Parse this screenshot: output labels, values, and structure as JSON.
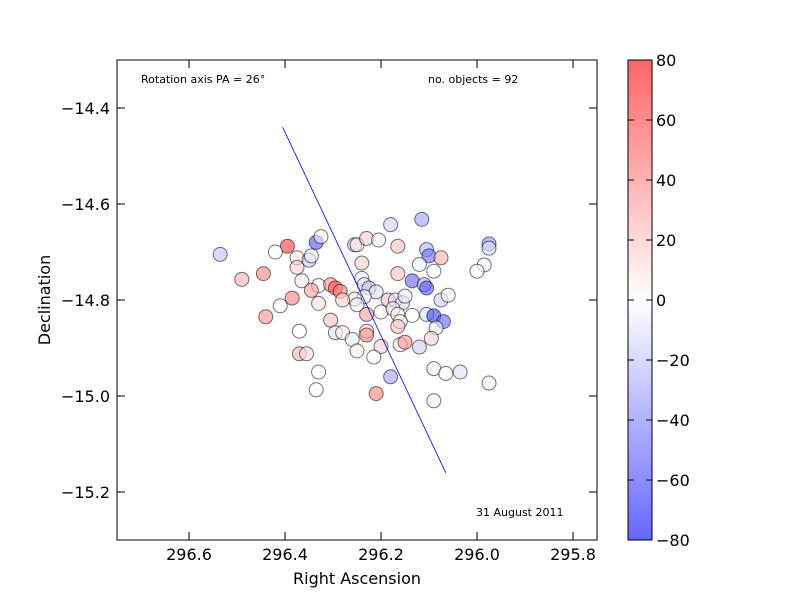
{
  "chart_data": {
    "type": "scatter",
    "xlabel": "Right Ascension",
    "ylabel": "Declination",
    "xlim": [
      296.75,
      295.75
    ],
    "ylim": [
      -15.3,
      -14.3
    ],
    "xticks": [
      296.6,
      296.4,
      296.2,
      296.0,
      295.8
    ],
    "xtick_labels": [
      "296.6",
      "296.4",
      "296.2",
      "296.0",
      "295.8"
    ],
    "yticks": [
      -14.4,
      -14.6,
      -14.8,
      -15.0,
      -15.2
    ],
    "ytick_labels": [
      "−14.4",
      "−14.6",
      "−14.8",
      "−15.0",
      "−15.2"
    ],
    "annotations": {
      "rotation_axis": "Rotation axis PA = 26°",
      "n_objects": "no. objects = 92",
      "date": "31 August 2011"
    },
    "rotation_axis_line": {
      "x": [
        296.405,
        296.065
      ],
      "y": [
        -14.44,
        -15.16
      ]
    },
    "colorbar": {
      "vmin": -80,
      "vmax": 80,
      "ticks": [
        80,
        60,
        40,
        20,
        0,
        -20,
        -40,
        -60,
        -80
      ],
      "tick_labels": [
        "80",
        "60",
        "40",
        "20",
        "0",
        "−20",
        "−40",
        "−60",
        "−80"
      ],
      "colormap": "bwr",
      "alpha": 0.6
    },
    "points": [
      {
        "ra": 296.535,
        "dec": -14.705,
        "v": -20
      },
      {
        "ra": 296.395,
        "dec": -14.688,
        "v": 60
      },
      {
        "ra": 296.335,
        "dec": -14.68,
        "v": -55
      },
      {
        "ra": 296.325,
        "dec": -14.668,
        "v": 5
      },
      {
        "ra": 296.255,
        "dec": -14.685,
        "v": -15
      },
      {
        "ra": 296.25,
        "dec": -14.685,
        "v": 10
      },
      {
        "ra": 296.23,
        "dec": -14.672,
        "v": 15
      },
      {
        "ra": 296.205,
        "dec": -14.675,
        "v": -5
      },
      {
        "ra": 296.18,
        "dec": -14.643,
        "v": -15
      },
      {
        "ra": 296.165,
        "dec": -14.688,
        "v": 20
      },
      {
        "ra": 296.115,
        "dec": -14.632,
        "v": -30
      },
      {
        "ra": 296.105,
        "dec": -14.695,
        "v": -25
      },
      {
        "ra": 296.1,
        "dec": -14.708,
        "v": -45
      },
      {
        "ra": 296.075,
        "dec": -14.712,
        "v": 25
      },
      {
        "ra": 295.975,
        "dec": -14.683,
        "v": -35
      },
      {
        "ra": 295.975,
        "dec": -14.692,
        "v": -10
      },
      {
        "ra": 295.985,
        "dec": -14.727,
        "v": -5
      },
      {
        "ra": 296.49,
        "dec": -14.757,
        "v": 25
      },
      {
        "ra": 296.445,
        "dec": -14.745,
        "v": 40
      },
      {
        "ra": 296.375,
        "dec": -14.712,
        "v": 5
      },
      {
        "ra": 296.375,
        "dec": -14.732,
        "v": 15
      },
      {
        "ra": 296.35,
        "dec": -14.717,
        "v": -15
      },
      {
        "ra": 296.345,
        "dec": -14.708,
        "v": -5
      },
      {
        "ra": 296.365,
        "dec": -14.76,
        "v": 5
      },
      {
        "ra": 296.33,
        "dec": -14.77,
        "v": 0
      },
      {
        "ra": 296.345,
        "dec": -14.78,
        "v": 30
      },
      {
        "ra": 296.305,
        "dec": -14.768,
        "v": 35
      },
      {
        "ra": 296.295,
        "dec": -14.775,
        "v": 55
      },
      {
        "ra": 296.285,
        "dec": -14.782,
        "v": 40
      },
      {
        "ra": 296.24,
        "dec": -14.723,
        "v": 15
      },
      {
        "ra": 296.24,
        "dec": -14.755,
        "v": -5
      },
      {
        "ra": 296.235,
        "dec": -14.768,
        "v": -10
      },
      {
        "ra": 296.225,
        "dec": -14.775,
        "v": -20
      },
      {
        "ra": 296.21,
        "dec": -14.783,
        "v": -10
      },
      {
        "ra": 296.235,
        "dec": -14.793,
        "v": 0
      },
      {
        "ra": 296.255,
        "dec": -14.798,
        "v": 10
      },
      {
        "ra": 296.25,
        "dec": -14.81,
        "v": -5
      },
      {
        "ra": 296.28,
        "dec": -14.8,
        "v": 15
      },
      {
        "ra": 296.165,
        "dec": -14.745,
        "v": 20
      },
      {
        "ra": 296.12,
        "dec": -14.726,
        "v": -5
      },
      {
        "ra": 296.09,
        "dec": -14.74,
        "v": 0
      },
      {
        "ra": 296.135,
        "dec": -14.76,
        "v": -50
      },
      {
        "ra": 296.11,
        "dec": -14.768,
        "v": -25
      },
      {
        "ra": 296.105,
        "dec": -14.775,
        "v": -55
      },
      {
        "ra": 296.185,
        "dec": -14.8,
        "v": 20
      },
      {
        "ra": 296.17,
        "dec": -14.8,
        "v": -10
      },
      {
        "ra": 296.155,
        "dec": -14.806,
        "v": -10
      },
      {
        "ra": 296.15,
        "dec": -14.792,
        "v": -5
      },
      {
        "ra": 296.075,
        "dec": -14.8,
        "v": -15
      },
      {
        "ra": 296.41,
        "dec": -14.812,
        "v": 0
      },
      {
        "ra": 296.385,
        "dec": -14.796,
        "v": 40
      },
      {
        "ra": 296.33,
        "dec": -14.807,
        "v": 10
      },
      {
        "ra": 296.44,
        "dec": -14.835,
        "v": 35
      },
      {
        "ra": 296.2,
        "dec": -14.825,
        "v": 0
      },
      {
        "ra": 296.175,
        "dec": -14.818,
        "v": -5
      },
      {
        "ra": 296.165,
        "dec": -14.83,
        "v": 5
      },
      {
        "ra": 296.23,
        "dec": -14.83,
        "v": 30
      },
      {
        "ra": 296.135,
        "dec": -14.832,
        "v": 0
      },
      {
        "ra": 296.105,
        "dec": -14.83,
        "v": -10
      },
      {
        "ra": 296.09,
        "dec": -14.833,
        "v": -60
      },
      {
        "ra": 296.07,
        "dec": -14.845,
        "v": -50
      },
      {
        "ra": 296.305,
        "dec": -14.842,
        "v": 20
      },
      {
        "ra": 296.16,
        "dec": -14.845,
        "v": 0
      },
      {
        "ra": 296.165,
        "dec": -14.855,
        "v": 20
      },
      {
        "ra": 296.085,
        "dec": -14.858,
        "v": -5
      },
      {
        "ra": 296.37,
        "dec": -14.865,
        "v": 0
      },
      {
        "ra": 296.295,
        "dec": -14.868,
        "v": -10
      },
      {
        "ra": 296.28,
        "dec": -14.868,
        "v": 5
      },
      {
        "ra": 296.23,
        "dec": -14.865,
        "v": 10
      },
      {
        "ra": 296.23,
        "dec": -14.873,
        "v": 35
      },
      {
        "ra": 296.26,
        "dec": -14.882,
        "v": -5
      },
      {
        "ra": 296.16,
        "dec": -14.893,
        "v": 5
      },
      {
        "ra": 296.15,
        "dec": -14.888,
        "v": 35
      },
      {
        "ra": 296.2,
        "dec": -14.897,
        "v": 15
      },
      {
        "ra": 296.12,
        "dec": -14.898,
        "v": -15
      },
      {
        "ra": 296.095,
        "dec": -14.88,
        "v": 15
      },
      {
        "ra": 296.25,
        "dec": -14.906,
        "v": 5
      },
      {
        "ra": 296.215,
        "dec": -14.919,
        "v": 0
      },
      {
        "ra": 296.37,
        "dec": -14.912,
        "v": 25
      },
      {
        "ra": 296.355,
        "dec": -14.912,
        "v": 10
      },
      {
        "ra": 296.33,
        "dec": -14.95,
        "v": 0
      },
      {
        "ra": 296.09,
        "dec": -14.943,
        "v": -5
      },
      {
        "ra": 296.065,
        "dec": -14.953,
        "v": 0
      },
      {
        "ra": 296.035,
        "dec": -14.95,
        "v": -10
      },
      {
        "ra": 296.18,
        "dec": -14.96,
        "v": -30
      },
      {
        "ra": 295.975,
        "dec": -14.973,
        "v": -5
      },
      {
        "ra": 296.335,
        "dec": -14.987,
        "v": 0
      },
      {
        "ra": 296.21,
        "dec": -14.995,
        "v": 40
      },
      {
        "ra": 296.09,
        "dec": -15.01,
        "v": 5
      },
      {
        "ra": 296.42,
        "dec": -14.7,
        "v": 0
      },
      {
        "ra": 296.0,
        "dec": -14.74,
        "v": 0
      },
      {
        "ra": 296.06,
        "dec": -14.79,
        "v": 0
      }
    ]
  }
}
